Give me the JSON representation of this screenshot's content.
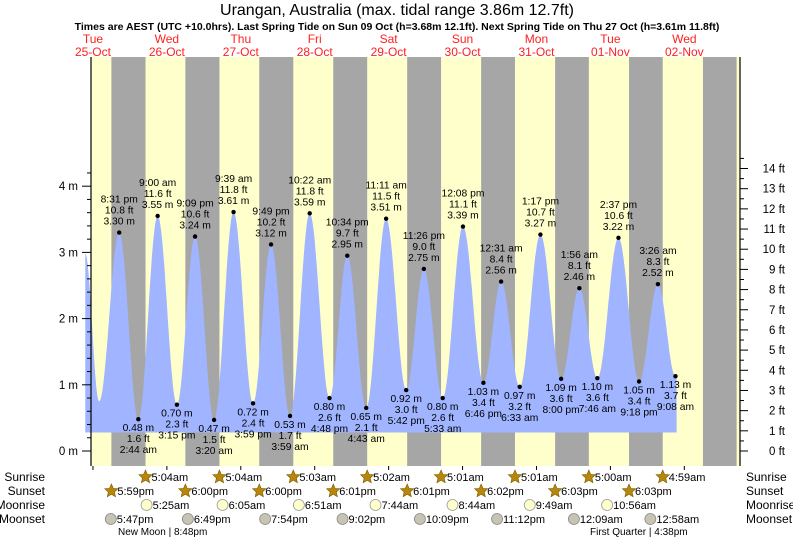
{
  "chart_data": {
    "type": "area",
    "title": "Urangan, Australia (max. tidal range 3.86m 12.7ft)",
    "subtitle": "Times are AEST (UTC +10.0hrs). Last Spring Tide on Sun 09 Oct (h=3.68m 12.1ft). Next Spring Tide on Thu 27 Oct (h=3.61m 11.8ft)",
    "days": [
      {
        "dow": "Tue",
        "date": "25-Oct"
      },
      {
        "dow": "Wed",
        "date": "26-Oct"
      },
      {
        "dow": "Thu",
        "date": "27-Oct"
      },
      {
        "dow": "Fri",
        "date": "28-Oct"
      },
      {
        "dow": "Sat",
        "date": "29-Oct"
      },
      {
        "dow": "Sun",
        "date": "30-Oct"
      },
      {
        "dow": "Mon",
        "date": "31-Oct"
      },
      {
        "dow": "Tue",
        "date": "01-Nov"
      },
      {
        "dow": "Wed",
        "date": "02-Nov"
      }
    ],
    "y_left": {
      "unit": "m",
      "range": [
        0,
        4.5
      ],
      "ticks": [
        "0 m",
        "1 m",
        "2 m",
        "3 m",
        "4 m"
      ]
    },
    "y_right": {
      "unit": "ft",
      "range": [
        0,
        14.76
      ],
      "ticks": [
        "0 ft",
        "1 ft",
        "2 ft",
        "3 ft",
        "4 ft",
        "5 ft",
        "6 ft",
        "7 ft",
        "8 ft",
        "9 ft",
        "10 ft",
        "11 ft",
        "12 ft",
        "13 ft",
        "14 ft"
      ]
    },
    "x_unit": "hours from 25-Oct 00:00",
    "series_start": {
      "t": 9.5,
      "h": 2.98
    },
    "series_end": {
      "t": 201.5
    },
    "extremes": [
      {
        "type": "low",
        "t": 14.0,
        "h": 0.75,
        "label": false
      },
      {
        "type": "high",
        "t": 20.52,
        "h": 3.3,
        "time": "8:31 pm",
        "ft": "10.8 ft",
        "m": "3.30 m"
      },
      {
        "type": "low",
        "t": 26.73,
        "h": 0.48,
        "time": "2:44 am",
        "ft": "1.6 ft",
        "m": "0.48 m"
      },
      {
        "type": "high",
        "t": 33.0,
        "h": 3.55,
        "time": "9:00 am",
        "ft": "11.6 ft",
        "m": "3.55 m"
      },
      {
        "type": "low",
        "t": 39.25,
        "h": 0.7,
        "time": "3:15 pm",
        "ft": "2.3 ft",
        "m": "0.70 m"
      },
      {
        "type": "high",
        "t": 45.15,
        "h": 3.24,
        "time": "9:09 pm",
        "ft": "10.6 ft",
        "m": "3.24 m"
      },
      {
        "type": "low",
        "t": 51.33,
        "h": 0.47,
        "time": "3:20 am",
        "ft": "1.5 ft",
        "m": "0.47 m"
      },
      {
        "type": "high",
        "t": 57.65,
        "h": 3.61,
        "time": "9:39 am",
        "ft": "11.8 ft",
        "m": "3.61 m"
      },
      {
        "type": "low",
        "t": 63.98,
        "h": 0.72,
        "time": "3:59 pm",
        "ft": "2.4 ft",
        "m": "0.72 m"
      },
      {
        "type": "high",
        "t": 69.82,
        "h": 3.12,
        "time": "9:49 pm",
        "ft": "10.2 ft",
        "m": "3.12 m"
      },
      {
        "type": "low",
        "t": 75.98,
        "h": 0.53,
        "time": "3:59 am",
        "ft": "1.7 ft",
        "m": "0.53 m"
      },
      {
        "type": "high",
        "t": 82.37,
        "h": 3.59,
        "time": "10:22 am",
        "ft": "11.8 ft",
        "m": "3.59 m"
      },
      {
        "type": "low",
        "t": 88.8,
        "h": 0.8,
        "time": "4:48 pm",
        "ft": "2.6 ft",
        "m": "0.80 m"
      },
      {
        "type": "high",
        "t": 94.57,
        "h": 2.95,
        "time": "10:34 pm",
        "ft": "9.7 ft",
        "m": "2.95 m"
      },
      {
        "type": "low",
        "t": 100.72,
        "h": 0.65,
        "time": "4:43 am",
        "ft": "2.1 ft",
        "m": "0.65 m"
      },
      {
        "type": "high",
        "t": 107.18,
        "h": 3.51,
        "time": "11:11 am",
        "ft": "11.5 ft",
        "m": "3.51 m"
      },
      {
        "type": "low",
        "t": 113.7,
        "h": 0.92,
        "time": "5:42 pm",
        "ft": "3.0 ft",
        "m": "0.92 m"
      },
      {
        "type": "high",
        "t": 119.43,
        "h": 2.75,
        "time": "11:26 pm",
        "ft": "9.0 ft",
        "m": "2.75 m"
      },
      {
        "type": "low",
        "t": 125.55,
        "h": 0.8,
        "time": "5:33 am",
        "ft": "2.6 ft",
        "m": "0.80 m"
      },
      {
        "type": "high",
        "t": 132.13,
        "h": 3.39,
        "time": "12:08 pm",
        "ft": "11.1 ft",
        "m": "3.39 m"
      },
      {
        "type": "low",
        "t": 138.77,
        "h": 1.03,
        "time": "6:46 pm",
        "ft": "3.4 ft",
        "m": "1.03 m"
      },
      {
        "type": "high",
        "t": 144.52,
        "h": 2.56,
        "time": "12:31 am",
        "ft": "8.4 ft",
        "m": "2.56 m"
      },
      {
        "type": "low",
        "t": 150.55,
        "h": 0.97,
        "time": "6:33 am",
        "ft": "3.2 ft",
        "m": "0.97 m"
      },
      {
        "type": "high",
        "t": 157.28,
        "h": 3.27,
        "time": "1:17 pm",
        "ft": "10.7 ft",
        "m": "3.27 m"
      },
      {
        "type": "low",
        "t": 164.0,
        "h": 1.09,
        "time": "8:00 pm",
        "ft": "3.6 ft",
        "m": "1.09 m"
      },
      {
        "type": "high",
        "t": 169.93,
        "h": 2.46,
        "time": "1:56 am",
        "ft": "8.1 ft",
        "m": "2.46 m"
      },
      {
        "type": "low",
        "t": 175.77,
        "h": 1.1,
        "time": "7:46 am",
        "ft": "3.6 ft",
        "m": "1.10 m"
      },
      {
        "type": "high",
        "t": 182.62,
        "h": 3.22,
        "time": "2:37 pm",
        "ft": "10.6 ft",
        "m": "3.22 m"
      },
      {
        "type": "low",
        "t": 189.3,
        "h": 1.05,
        "time": "9:18 pm",
        "ft": "3.4 ft",
        "m": "1.05 m"
      },
      {
        "type": "high",
        "t": 195.43,
        "h": 2.52,
        "time": "3:26 am",
        "ft": "8.3 ft",
        "m": "2.52 m"
      },
      {
        "type": "low",
        "t": 201.13,
        "h": 1.13,
        "time": "9:08 am",
        "ft": "3.7 ft",
        "m": "1.13 m"
      }
    ],
    "sun_moon": {
      "row_labels": [
        "Sunrise",
        "Sunset",
        "Moonrise",
        "Moonset"
      ],
      "sunrise": [
        "5:04am",
        "5:04am",
        "5:03am",
        "5:02am",
        "5:01am",
        "5:01am",
        "5:00am",
        "4:59am"
      ],
      "sunset": [
        "5:59pm",
        "6:00pm",
        "6:00pm",
        "6:01pm",
        "6:01pm",
        "6:02pm",
        "6:03pm",
        "6:03pm"
      ],
      "moonrise": [
        "5:25am",
        "6:05am",
        "6:51am",
        "7:44am",
        "8:44am",
        "9:49am",
        "10:56am"
      ],
      "moonset": [
        "5:47pm",
        "6:49pm",
        "7:54pm",
        "9:02pm",
        "10:09pm",
        "11:12pm",
        "12:09am",
        "12:58am"
      ]
    },
    "moon_phases": [
      "New Moon | 8:48pm",
      "First Quarter | 4:38pm"
    ],
    "colors": {
      "day": "#ffffcc",
      "night": "#a6a6a6",
      "water": "#a0b4ff",
      "day_label": "#ff2020",
      "sun_icon": "#b8860b",
      "moonrise_icon": "#ffffcc",
      "moonset_icon": "#c8c4b4"
    }
  }
}
